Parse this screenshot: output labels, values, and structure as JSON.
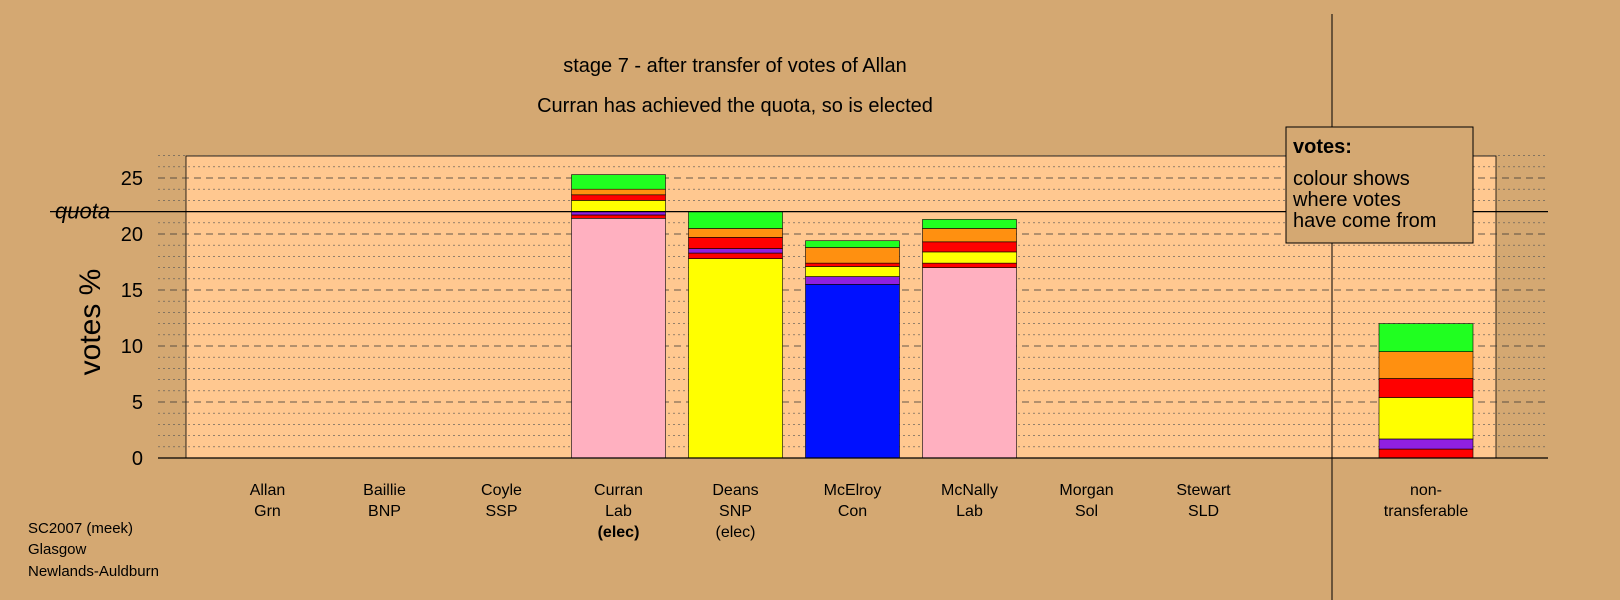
{
  "chart_data": {
    "type": "bar",
    "stacked": true,
    "title": "stage 7 - after transfer of votes of Allan",
    "subtitle": "Curran has achieved the quota, so is elected",
    "ylabel": "votes %",
    "ylim": [
      0,
      27
    ],
    "yticks": [
      0,
      5,
      10,
      15,
      20,
      25
    ],
    "quota": 22.0,
    "quota_label": "quota",
    "grid": true,
    "candidates": [
      {
        "name": "Allan",
        "party": "Grn",
        "status": "",
        "status_bold": false,
        "segments": []
      },
      {
        "name": "Baillie",
        "party": "BNP",
        "status": "",
        "status_bold": false,
        "segments": []
      },
      {
        "name": "Coyle",
        "party": "SSP",
        "status": "",
        "status_bold": false,
        "segments": []
      },
      {
        "name": "Curran",
        "party": "Lab",
        "status": "(elec)",
        "status_bold": true,
        "segments": [
          {
            "color": "#ffb0c0",
            "value": 21.4
          },
          {
            "color": "#ff0000",
            "value": 0.3
          },
          {
            "color": "#9020e0",
            "value": 0.3
          },
          {
            "color": "#ffff00",
            "value": 1.0
          },
          {
            "color": "#ff0000",
            "value": 0.5
          },
          {
            "color": "#ff9010",
            "value": 0.5
          },
          {
            "color": "#20ff20",
            "value": 1.3
          }
        ]
      },
      {
        "name": "Deans",
        "party": "SNP",
        "status": "(elec)",
        "status_bold": false,
        "segments": [
          {
            "color": "#ffff00",
            "value": 17.8
          },
          {
            "color": "#ff0000",
            "value": 0.5
          },
          {
            "color": "#9020e0",
            "value": 0.4
          },
          {
            "color": "#ff0000",
            "value": 1.0
          },
          {
            "color": "#ff9010",
            "value": 0.8
          },
          {
            "color": "#20ff20",
            "value": 1.5
          }
        ]
      },
      {
        "name": "McElroy",
        "party": "Con",
        "status": "",
        "status_bold": false,
        "segments": [
          {
            "color": "#0010ff",
            "value": 15.5
          },
          {
            "color": "#9020e0",
            "value": 0.7
          },
          {
            "color": "#ffff00",
            "value": 0.9
          },
          {
            "color": "#ff0000",
            "value": 0.3
          },
          {
            "color": "#ff9010",
            "value": 1.4
          },
          {
            "color": "#20ff20",
            "value": 0.6
          }
        ]
      },
      {
        "name": "McNally",
        "party": "Lab",
        "status": "",
        "status_bold": false,
        "segments": [
          {
            "color": "#ffb0c0",
            "value": 17.0
          },
          {
            "color": "#ff0000",
            "value": 0.4
          },
          {
            "color": "#ffff00",
            "value": 1.0
          },
          {
            "color": "#ff0000",
            "value": 0.9
          },
          {
            "color": "#ff9010",
            "value": 1.2
          },
          {
            "color": "#20ff20",
            "value": 0.8
          }
        ]
      },
      {
        "name": "Morgan",
        "party": "Sol",
        "status": "",
        "status_bold": false,
        "segments": []
      },
      {
        "name": "Stewart",
        "party": "SLD",
        "status": "",
        "status_bold": false,
        "segments": []
      }
    ],
    "non_transferable": {
      "line1": "non-",
      "line2": "transferable",
      "segments": [
        {
          "color": "#ff0000",
          "value": 0.8
        },
        {
          "color": "#9020e0",
          "value": 0.9
        },
        {
          "color": "#ffff00",
          "value": 3.7
        },
        {
          "color": "#ff0000",
          "value": 1.7
        },
        {
          "color": "#ff9010",
          "value": 2.4
        },
        {
          "color": "#20ff20",
          "value": 2.5
        }
      ]
    },
    "legend": {
      "title": "votes:",
      "lines": [
        "colour shows",
        "where votes",
        "have come from"
      ],
      "placement": "top-right"
    }
  },
  "footer": {
    "line1": "SC2007 (meek)",
    "line2": "Glasgow",
    "line3": "Newlands-Auldburn"
  },
  "colors": {
    "background": "#d4a872",
    "plot_area": "#ffc890",
    "legend_box": "#d4a872"
  }
}
